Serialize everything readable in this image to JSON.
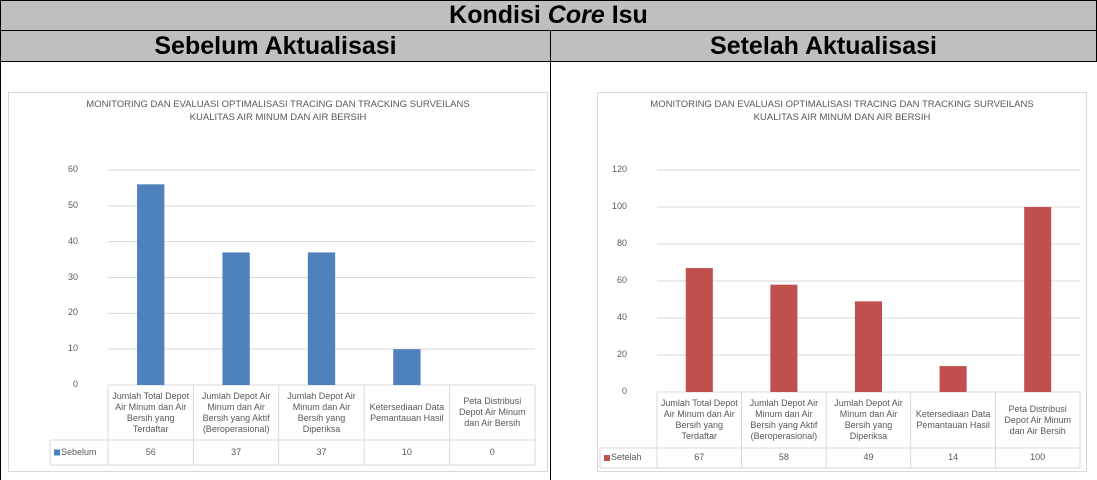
{
  "header": {
    "title": {
      "before": "Kondisi",
      "emphasis": "Core",
      "after": "Isu"
    },
    "left": "Sebelum Aktualisasi",
    "right": "Setelah Aktualisasi"
  },
  "chart_data": [
    {
      "type": "bar",
      "title": "MONITORING DAN EVALUASI OPTIMALISASI TRACING DAN TRACKING SURVEILANS KUALITAS AIR MINUM DAN AIR BERSIH",
      "categories": [
        "Jumlah Total Depot Air Minum dan Air Bersih yang Terdaftar",
        "Jumlah Depot Air Minum dan Air Bersih yang Aktif (Beroperasional)",
        "Jumlah Depot Air Minum dan Air Bersih yang Diperiksa",
        "Ketersediaan Data Pemantauan Hasil",
        "Peta Distribusi Depot Air Minum dan Air Bersih"
      ],
      "series": [
        {
          "name": "Sebelum",
          "color": "#4f81bd",
          "values": [
            56,
            37,
            37,
            10,
            0
          ]
        }
      ],
      "ylim": [
        0,
        60
      ],
      "yticks": [
        0,
        10,
        20,
        30,
        40,
        50,
        60
      ],
      "grid": true
    },
    {
      "type": "bar",
      "title": "MONITORING DAN EVALUASI OPTIMALISASI TRACING DAN TRACKING SURVEILANS KUALITAS AIR MINUM DAN AIR BERSIH",
      "categories": [
        "Jumlah Total Depot Air Minum dan Air Bersih yang Terdaftar",
        "Jumlah Depot Air Minum dan Air Bersih yang Aktif (Beroperasional)",
        "Jumlah Depot Air Minum dan Air Bersih yang Diperiksa",
        "Ketersediaan Data Pemantauan Hasil",
        "Peta Distribusi Depot Air Minum dan Air Bersih"
      ],
      "series": [
        {
          "name": "Setelah",
          "color": "#c0504d",
          "values": [
            67,
            58,
            49,
            14,
            100
          ]
        }
      ],
      "ylim": [
        0,
        120
      ],
      "yticks": [
        0,
        20,
        40,
        60,
        80,
        100,
        120
      ],
      "grid": true
    }
  ]
}
